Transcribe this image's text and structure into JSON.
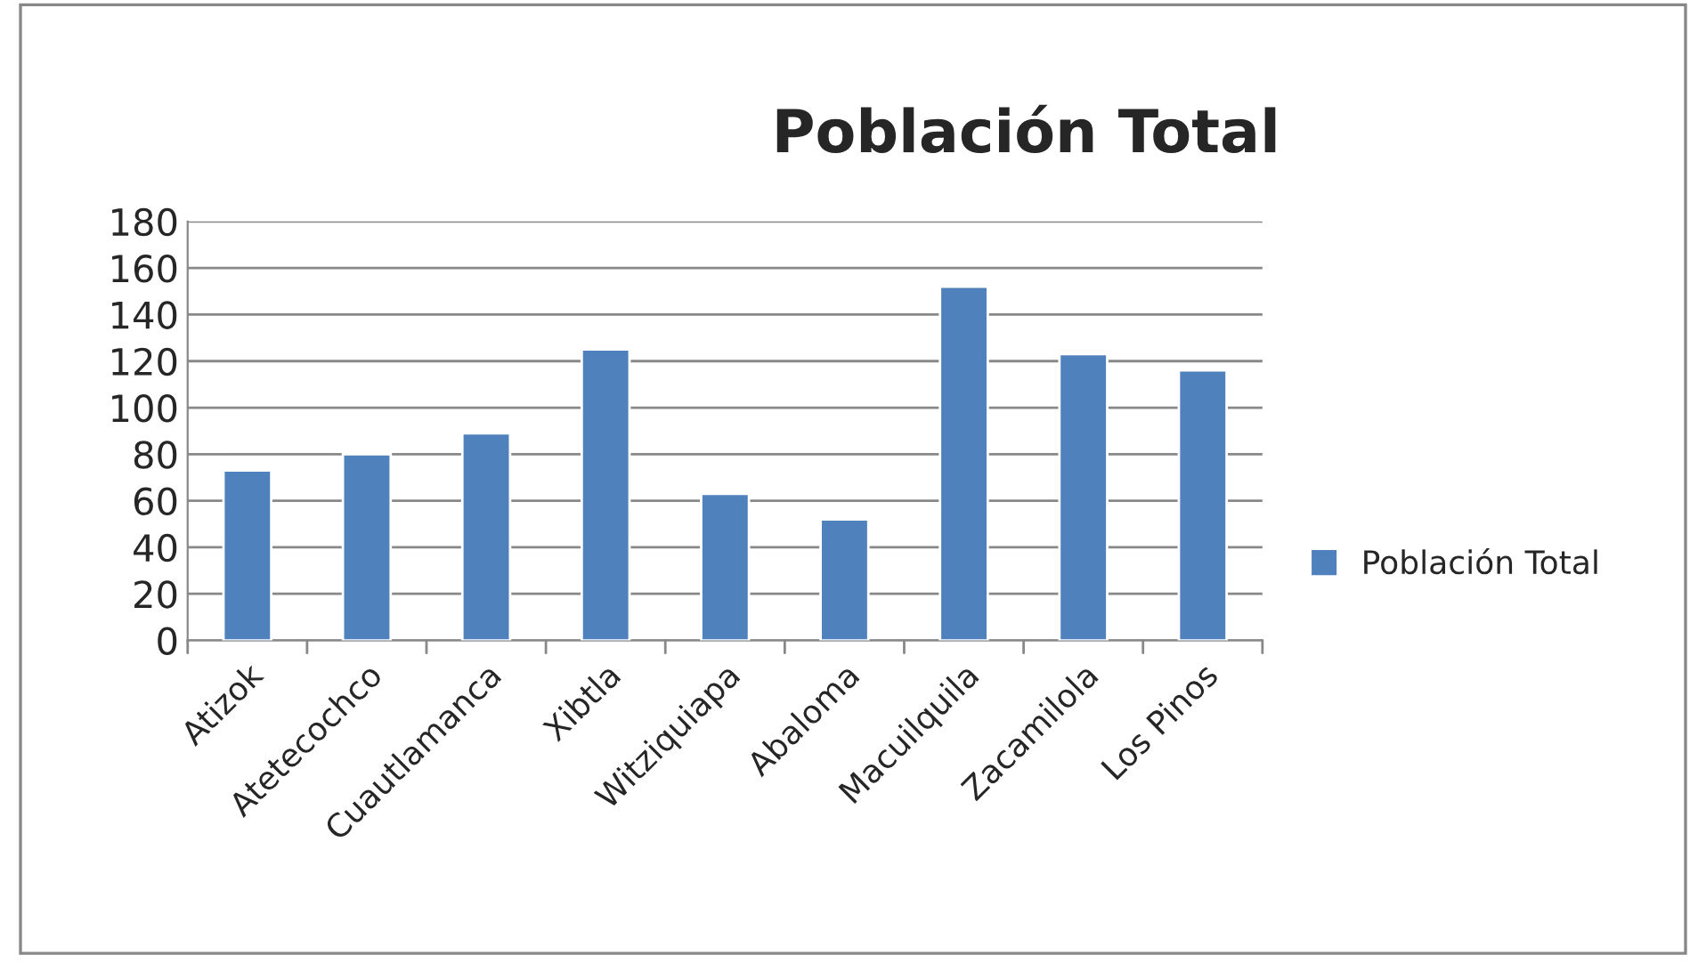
{
  "chart_data": {
    "type": "bar",
    "title": "Población Total",
    "categories": [
      "Atizok",
      "Atetecochco",
      "Cuautlamanca",
      "Xibtla",
      "Witziquiapa",
      "Abaloma",
      "Macuilquila",
      "Zacamilola",
      "Los Pinos"
    ],
    "series": [
      {
        "name": "Población Total",
        "color": "#4f81bd",
        "values": [
          73,
          80,
          89,
          125,
          63,
          52,
          152,
          123,
          116
        ]
      }
    ],
    "ylim": [
      0,
      180
    ],
    "yticks": [
      0,
      20,
      40,
      60,
      80,
      100,
      120,
      140,
      160,
      180
    ],
    "grid": "y",
    "legend": "right"
  }
}
